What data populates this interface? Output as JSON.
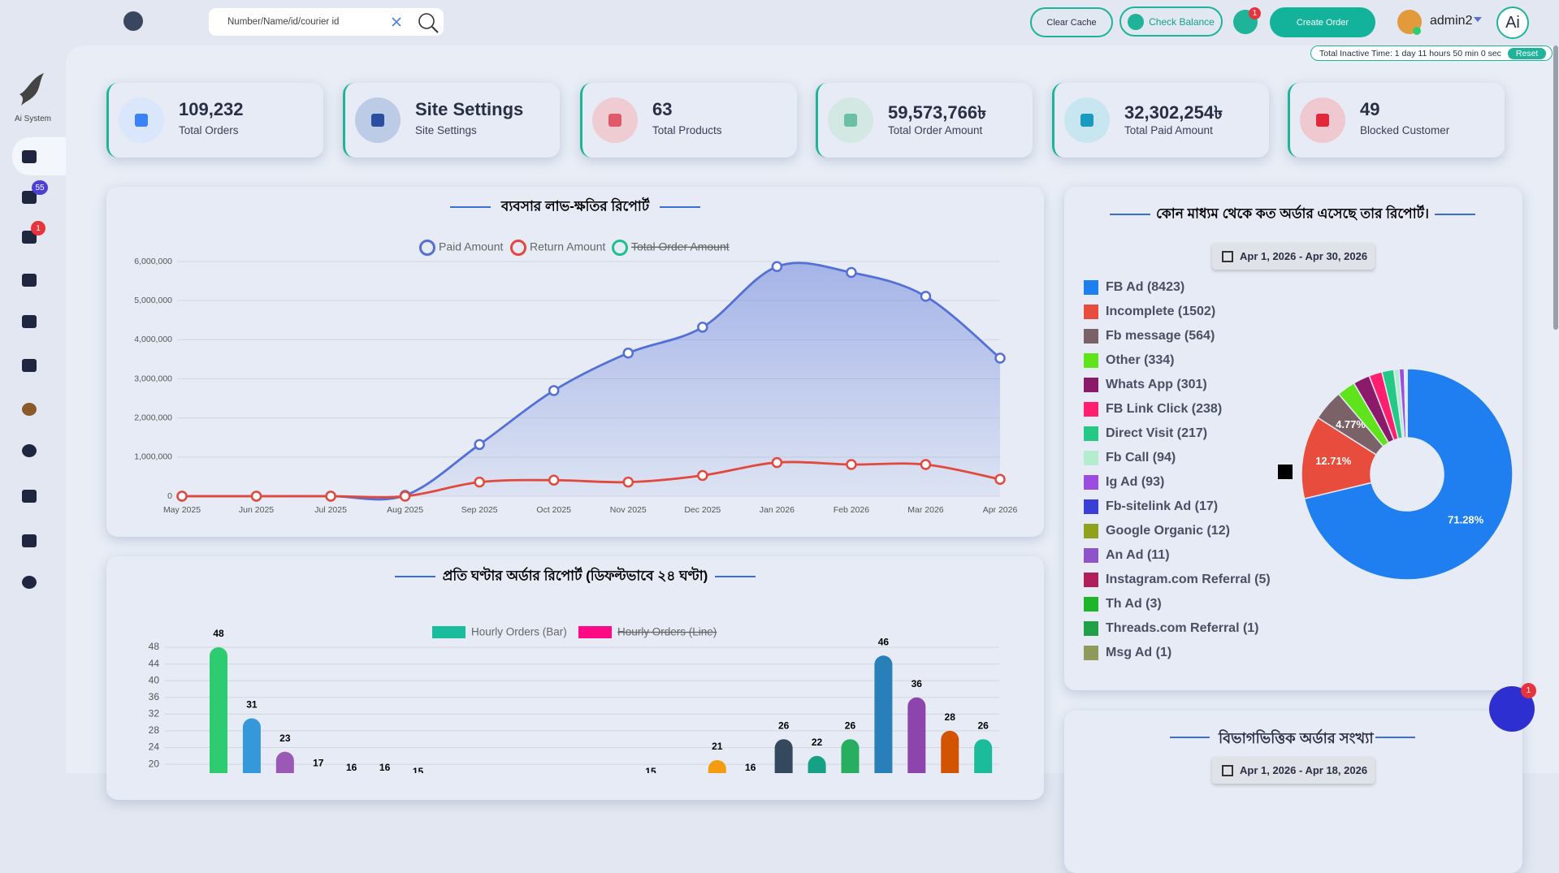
{
  "header": {
    "search_placeholder": "Number/Name/id/courier id",
    "clear_cache": "Clear Cache",
    "check_balance": "Check Balance",
    "notification_count": "1",
    "create_order": "Create Order",
    "user": "admin2",
    "ai": "Ai",
    "inactive_time": "Total Inactive Time: 1 day 11 hours 50 min 0 sec",
    "reset": "Reset"
  },
  "sidebar": {
    "brand": "Ai System",
    "cart_badge": "55",
    "orders_badge": "1"
  },
  "stats": [
    {
      "value": "109,232",
      "label": "Total Orders",
      "color": "#3b82f6",
      "bg": "#d9e6fb"
    },
    {
      "value": "Site Settings",
      "label": "Site Settings",
      "color": "#2a4fa0",
      "bg": "#bccbe6"
    },
    {
      "value": "63",
      "label": "Total Products",
      "color": "#e05a6a",
      "bg": "#efcbd2"
    },
    {
      "value": "59,573,766৳",
      "label": "Total Order Amount",
      "color": "#6bbfa3",
      "bg": "#d3e7e3"
    },
    {
      "value": "32,302,254৳",
      "label": "Total Paid Amount",
      "color": "#1a9ac0",
      "bg": "#c8e6f0"
    },
    {
      "value": "49",
      "label": "Blocked Customer",
      "color": "#e0283a",
      "bg": "#efc9cf"
    }
  ],
  "chart_data": [
    {
      "type": "line",
      "title": "ব্যবসার লাভ-ক্ষতির রিপোর্ট",
      "categories": [
        "May 2025",
        "Jun 2025",
        "Jul 2025",
        "Aug 2025",
        "Sep 2025",
        "Oct 2025",
        "Nov 2025",
        "Dec 2025",
        "Jan 2026",
        "Feb 2026",
        "Mar 2026",
        "Apr 2026"
      ],
      "series": [
        {
          "name": "Paid Amount",
          "color": "#5470d6",
          "fill": true,
          "values": [
            0,
            0,
            0,
            20000,
            1320000,
            2700000,
            3660000,
            4320000,
            5870000,
            5720000,
            5110000,
            3530000
          ]
        },
        {
          "name": "Return Amount",
          "color": "#e2483b",
          "values": [
            0,
            0,
            0,
            0,
            360000,
            410000,
            360000,
            530000,
            860000,
            810000,
            810000,
            430000
          ]
        },
        {
          "name": "Total Order Amount",
          "color": "#1fbf8f",
          "hidden": true,
          "values": [
            null,
            null,
            null,
            null,
            null,
            null,
            null,
            null,
            null,
            null,
            null,
            null
          ]
        }
      ],
      "ylim": [
        0,
        6000000
      ],
      "yticks": [
        0,
        {
          "value": 1000000,
          "label": "1,000,000"
        },
        {
          "value": 2000000,
          "label": "2,000,000"
        },
        {
          "value": 3000000,
          "label": "3,000,000"
        },
        {
          "value": 4000000,
          "label": "4,000,000"
        },
        {
          "value": 5000000,
          "label": "5,000,000"
        },
        {
          "value": 6000000,
          "label": "6,000,000"
        }
      ],
      "grid": true
    },
    {
      "type": "bar",
      "title": "প্রতি ঘণ্টার অর্ডার রিপোর্ট (ডিফল্টভাবে ২৪ ঘণ্টা)",
      "categories": [
        null,
        null,
        null,
        null,
        null,
        null,
        null,
        null,
        null,
        null,
        null,
        null,
        null,
        null,
        null,
        null,
        null,
        null,
        null,
        null,
        null,
        null,
        null,
        null
      ],
      "series": [
        {
          "name": "Hourly Orders (Bar)",
          "color": "#1abc9c",
          "values": [
            48,
            31,
            23,
            17,
            16,
            16,
            15,
            null,
            null,
            null,
            null,
            null,
            null,
            15,
            null,
            21,
            16,
            26,
            22,
            26,
            46,
            36,
            28,
            26
          ],
          "bar_colors": [
            "#2ecc71",
            "#3498db",
            "#9b59b6",
            "#34495e",
            "#16a085",
            "#27ae60",
            "#2980b9",
            "#8e44ad",
            "#2c3e50",
            "#f1c40f",
            "#e67e22",
            "#e74c3c",
            "#95a5a6",
            "#1abc9c",
            "#2ecc71",
            "#f39c12",
            "#d35400",
            "#34495e",
            "#16a085",
            "#27ae60",
            "#2980b9",
            "#8e44ad",
            "#d35400",
            "#1abc9c"
          ]
        },
        {
          "name": "Hourly Orders (Line)",
          "color": "#ff0a84",
          "hidden": true,
          "values": [
            null,
            null,
            null,
            null,
            null,
            null,
            null,
            null,
            null,
            null,
            null,
            null,
            null,
            null,
            null,
            null,
            null,
            null,
            null,
            null,
            null,
            null,
            null,
            null
          ]
        }
      ],
      "ylim": [
        0,
        48
      ],
      "yticks": [
        20,
        24,
        28,
        32,
        36,
        40,
        44,
        48
      ],
      "grid": true,
      "data_labels": true
    },
    {
      "type": "doughnut",
      "title": "কোন মাধ্যম থেকে কত অর্ডার এসেছে তার রিপোর্ট।",
      "date_range": "Apr 1, 2026 - Apr 30, 2026",
      "categories": [
        "FB Ad (8423)",
        "Incomplete (1502)",
        "Fb message (564)",
        "Other (334)",
        "Whats App (301)",
        "FB Link Click (238)",
        "Direct Visit (217)",
        "Fb Call (94)",
        "Ig Ad (93)",
        "Fb-sitelink Ad (17)",
        "Google Organic (12)",
        "An Ad (11)",
        "Instagram.com Referral (5)",
        "Th Ad (3)",
        "Threads.com Referral (1)",
        "Msg Ad (1)"
      ],
      "values": [
        8423,
        1502,
        564,
        334,
        301,
        238,
        217,
        94,
        93,
        17,
        12,
        11,
        5,
        3,
        1,
        1
      ],
      "value_labels": [
        "71.28%",
        "12.71%",
        "4.77%",
        null,
        null,
        null,
        null,
        null,
        null,
        null,
        null,
        null,
        null,
        null,
        null,
        null
      ],
      "colors": [
        "#1f7ef0",
        "#e84c3d",
        "#7a6268",
        "#5fe31a",
        "#8b1a6b",
        "#ff1f6e",
        "#24c985",
        "#b4ecd0",
        "#9b4de0",
        "#3a3fd8",
        "#8ea21c",
        "#8e52c9",
        "#b01f5a",
        "#1eb52a",
        "#20a047",
        "#8f9a5a"
      ]
    }
  ],
  "district_card": {
    "title": "বিভাগভিত্তিক অর্ডার সংখ্যা",
    "date_range": "Apr 1, 2026 - Apr 18, 2026"
  },
  "chat_badge": "1"
}
